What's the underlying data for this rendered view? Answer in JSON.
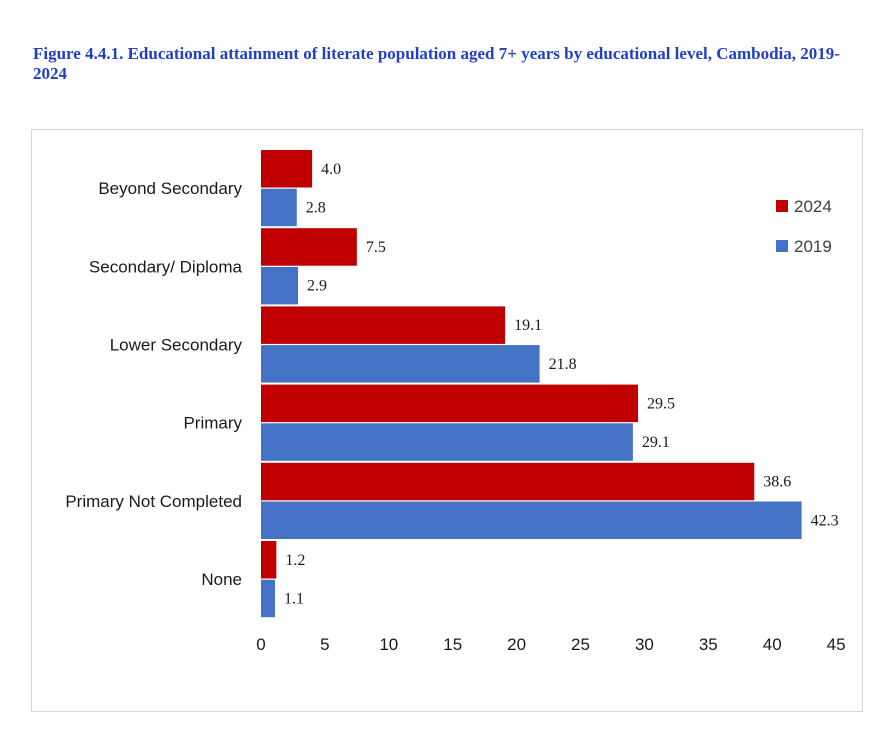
{
  "figure": {
    "title": "Figure 4.4.1. Educational attainment of literate population aged 7+ years by educational level, Cambodia, 2019-2024"
  },
  "colors": {
    "series_2024": "#c00000",
    "series_2019": "#4472c4"
  },
  "chart_data": {
    "type": "bar",
    "orientation": "horizontal",
    "categories": [
      "Beyond Secondary",
      "Secondary/ Diploma",
      "Lower Secondary",
      "Primary",
      "Primary Not Completed",
      "None"
    ],
    "series": [
      {
        "name": "2024",
        "color": "#c00000",
        "values": [
          4.0,
          7.5,
          19.1,
          29.5,
          38.6,
          1.2
        ]
      },
      {
        "name": "2019",
        "color": "#4472c4",
        "values": [
          2.8,
          2.9,
          21.8,
          29.1,
          42.3,
          1.1
        ]
      }
    ],
    "data_labels": [
      [
        "4.0",
        "7.5",
        "19.1",
        "29.5",
        "38.6",
        "1.2"
      ],
      [
        "2.8",
        "2.9",
        "21.8",
        "29.1",
        "42.3",
        "1.1"
      ]
    ],
    "xlim": [
      0,
      45
    ],
    "xticks": [
      "0",
      "5",
      "10",
      "15",
      "20",
      "25",
      "30",
      "35",
      "40",
      "45"
    ],
    "grid": false,
    "legend_position": "right"
  }
}
